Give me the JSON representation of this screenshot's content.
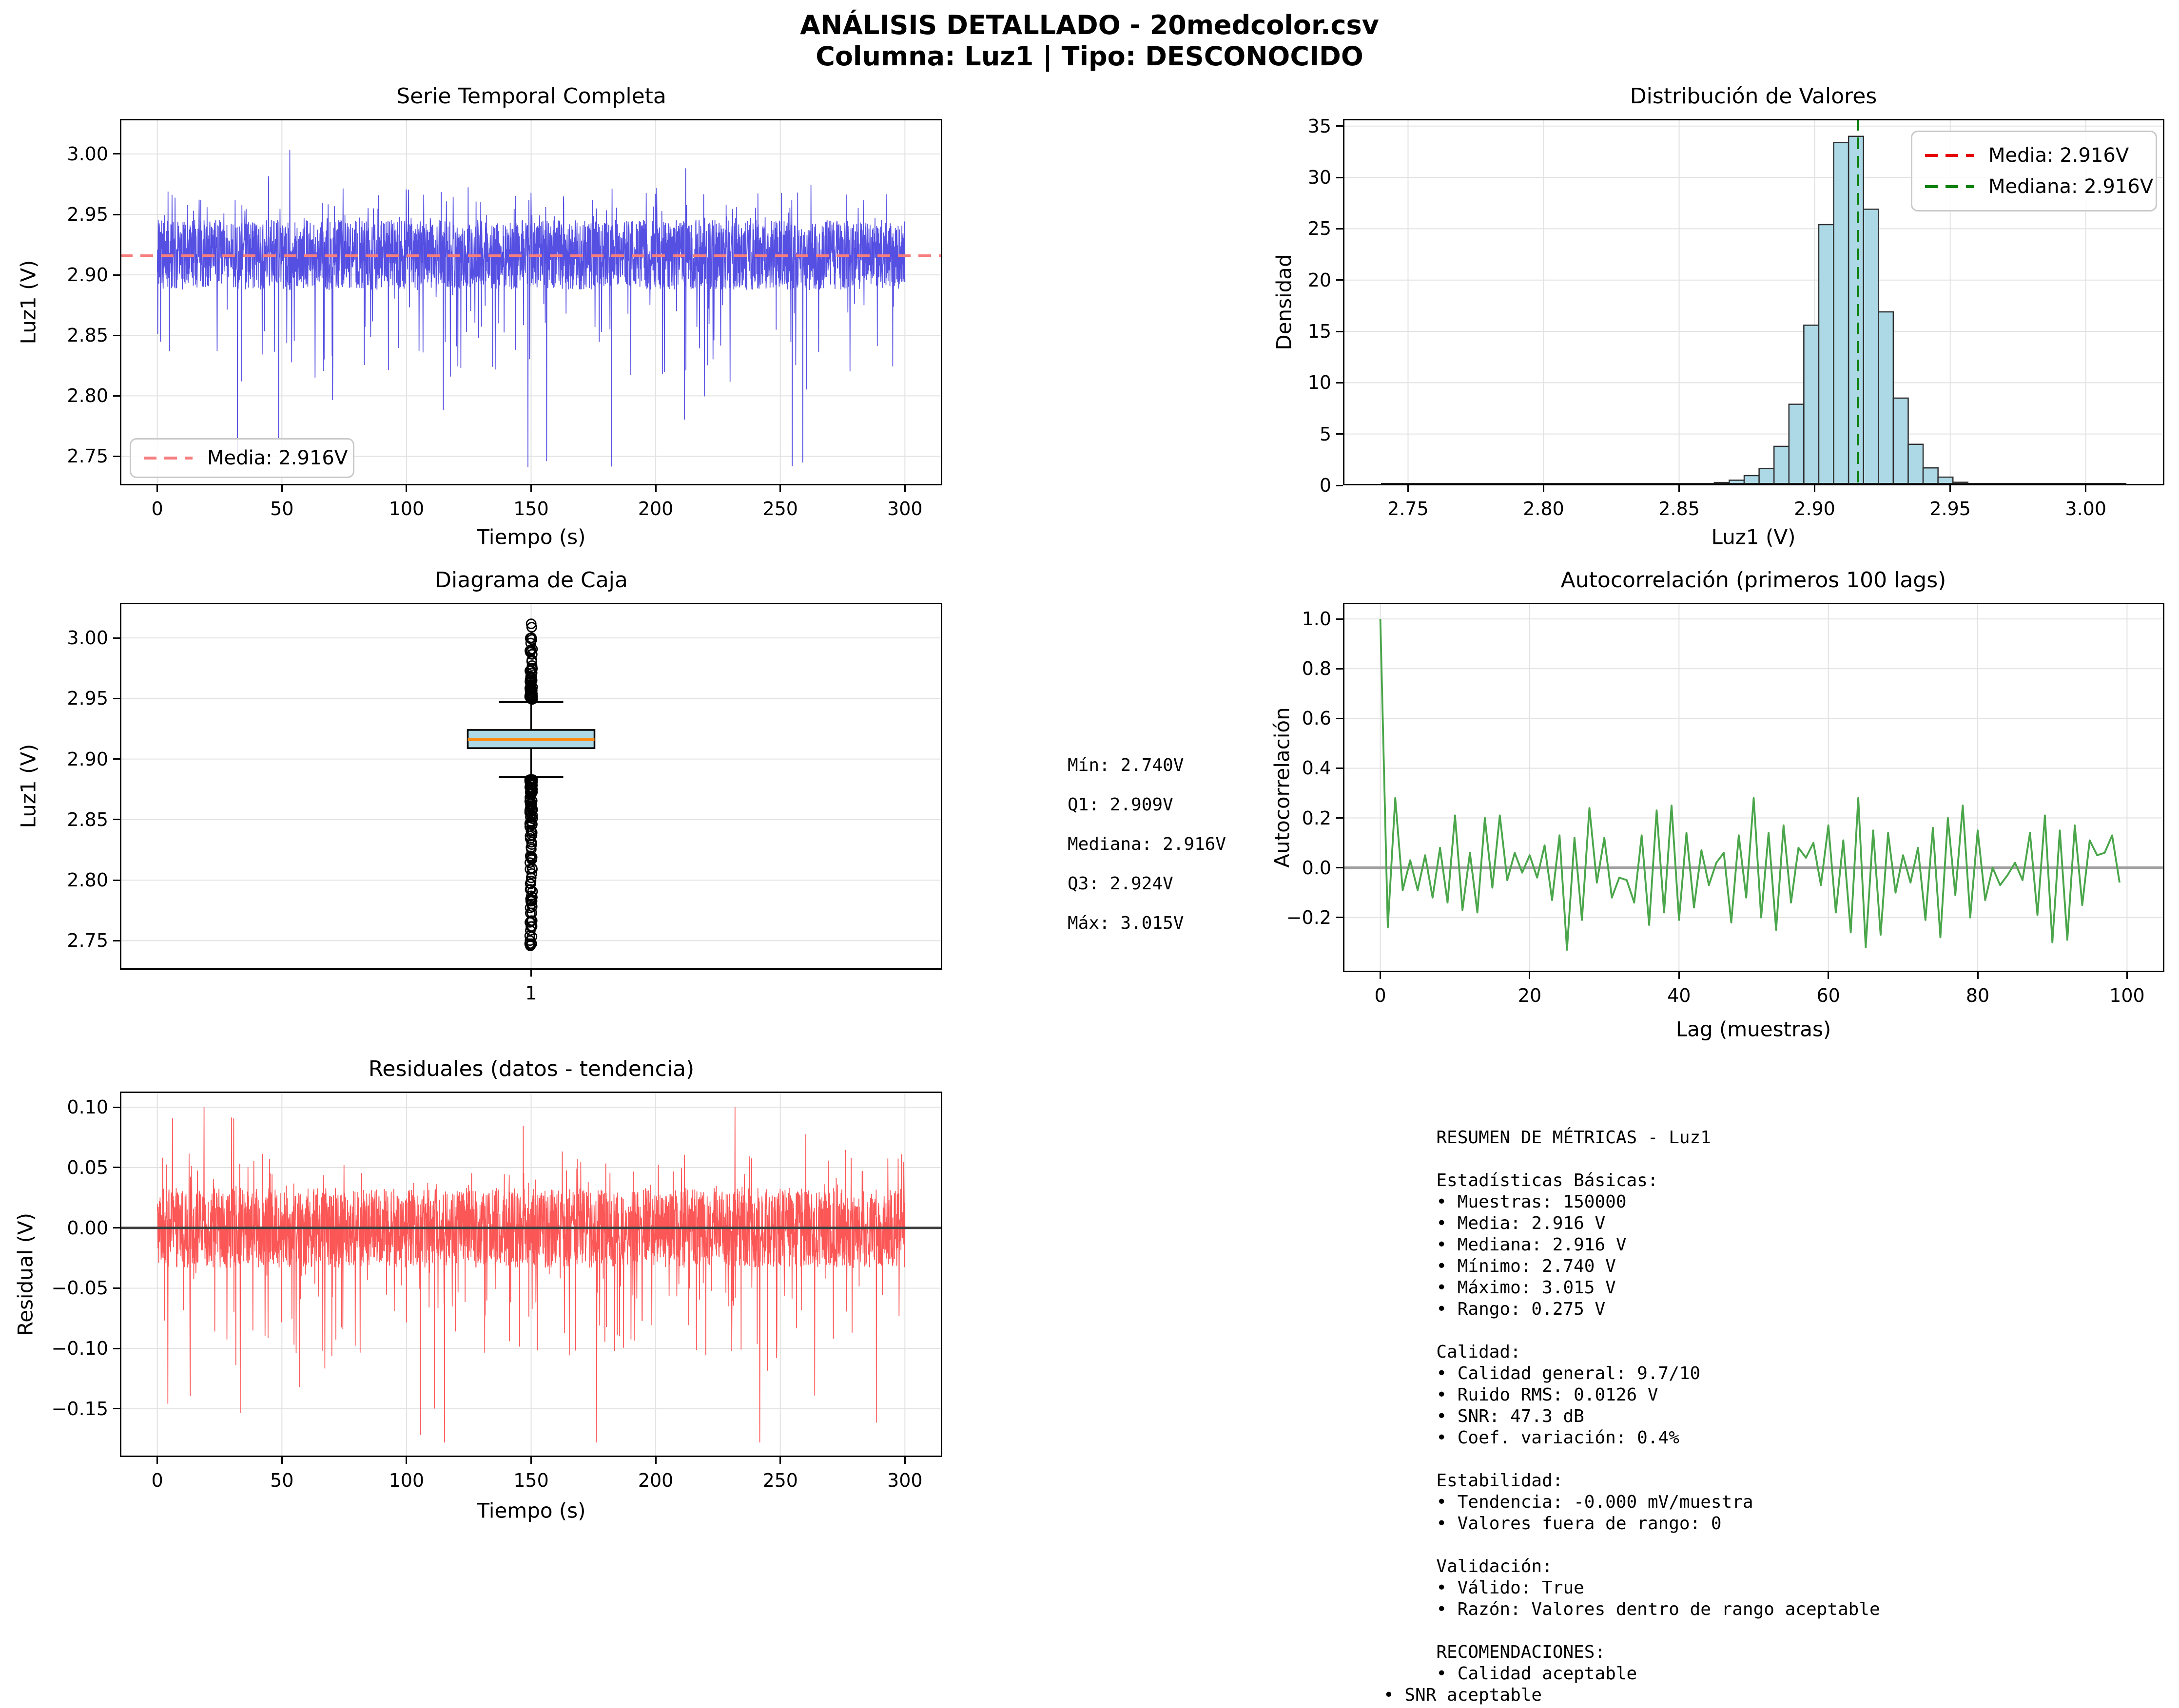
{
  "header": {
    "line1": "ANÁLISIS DETALLADO - 20medcolor.csv",
    "line2": "Columna: Luz1 | Tipo: DESCONOCIDO"
  },
  "colors": {
    "series_blue": "#4640e0",
    "mean_salmon": "#f77e7e",
    "media_red": "#e60000",
    "mediana_green": "#0b800b",
    "hist_fill": "#add8e6",
    "hist_edge": "#2f2f2f",
    "box_fill": "#add8e6",
    "box_median_orange": "#ff8b12",
    "autocorr_green": "#4ba64b",
    "residual_red": "#fc4a4a",
    "grid": "#e2e2e2",
    "zero_gray": "#a0a0a0",
    "zero_dark": "#3f3f3f"
  },
  "stats_annotation": {
    "lines": [
      "Mín: 2.740V",
      "Q1: 2.909V",
      "Mediana: 2.916V",
      "Q3: 2.924V",
      "Máx: 3.015V"
    ]
  },
  "metrics": {
    "lines": [
      "     RESUMEN DE MÉTRICAS - Luz1",
      "",
      "     Estadísticas Básicas:",
      "     • Muestras: 150000",
      "     • Media: 2.916 V",
      "     • Mediana: 2.916 V",
      "     • Mínimo: 2.740 V",
      "     • Máximo: 3.015 V",
      "     • Rango: 0.275 V",
      "",
      "     Calidad:",
      "     • Calidad general: 9.7/10",
      "     • Ruido RMS: 0.0126 V",
      "     • SNR: 47.3 dB",
      "     • Coef. variación: 0.4%",
      "",
      "     Estabilidad:",
      "     • Tendencia: -0.000 mV/muestra",
      "     • Valores fuera de rango: 0",
      "",
      "     Validación:",
      "     • Válido: True",
      "     • Razón: Valores dentro de rango aceptable",
      "",
      "     RECOMENDACIONES:",
      "     • Calidad aceptable",
      "• SNR aceptable"
    ]
  },
  "chart_data": [
    {
      "id": "timeseries",
      "type": "line",
      "title": "Serie Temporal Completa",
      "xlabel": "Tiempo (s)",
      "ylabel": "Luz1 (V)",
      "xlim": [
        -15,
        315
      ],
      "ylim": [
        2.726,
        3.029
      ],
      "xticks": {
        "values": [
          0,
          50,
          100,
          150,
          200,
          250,
          300
        ],
        "labels": [
          "0",
          "50",
          "100",
          "150",
          "200",
          "250",
          "300"
        ]
      },
      "yticks": {
        "values": [
          2.75,
          2.8,
          2.85,
          2.9,
          2.95,
          3.0
        ],
        "labels": [
          "2.75",
          "2.80",
          "2.85",
          "2.90",
          "2.95",
          "3.00"
        ]
      },
      "legend": [
        {
          "label": "Media: 2.916V",
          "color": "#f77e7e",
          "dashed": true
        }
      ],
      "mean_line": {
        "value": 2.916,
        "color": "#f77e7e"
      },
      "series": {
        "color": "#4640e0",
        "n": 3200,
        "t_range": [
          0,
          300
        ],
        "mean": 2.9165,
        "band": 0.029,
        "min": 2.74,
        "max": 3.015,
        "seed": 42
      }
    },
    {
      "id": "histogram",
      "type": "bar",
      "title": "Distribución de Valores",
      "xlabel": "Luz1 (V)",
      "ylabel": "Densidad",
      "xlim": [
        2.726,
        3.029
      ],
      "ylim": [
        0,
        35.7
      ],
      "xticks": {
        "values": [
          2.75,
          2.8,
          2.85,
          2.9,
          2.95,
          3.0
        ],
        "labels": [
          "2.75",
          "2.80",
          "2.85",
          "2.90",
          "2.95",
          "3.00"
        ]
      },
      "yticks": {
        "values": [
          0,
          5,
          10,
          15,
          20,
          25,
          30,
          35
        ],
        "labels": [
          "0",
          "5",
          "10",
          "15",
          "20",
          "25",
          "30",
          "35"
        ]
      },
      "bin_width": 0.0055,
      "bars": [
        [
          2.852,
          0.1
        ],
        [
          2.8575,
          0.18
        ],
        [
          2.863,
          0.28
        ],
        [
          2.8685,
          0.5
        ],
        [
          2.874,
          0.95
        ],
        [
          2.8795,
          1.65
        ],
        [
          2.885,
          3.8
        ],
        [
          2.8905,
          7.9
        ],
        [
          2.896,
          15.6
        ],
        [
          2.9015,
          25.4
        ],
        [
          2.907,
          33.4
        ],
        [
          2.9125,
          34.0
        ],
        [
          2.918,
          26.9
        ],
        [
          2.9235,
          16.9
        ],
        [
          2.929,
          8.5
        ],
        [
          2.9345,
          4.0
        ],
        [
          2.94,
          1.7
        ],
        [
          2.9455,
          0.8
        ],
        [
          2.951,
          0.3
        ],
        [
          2.9565,
          0.15
        ],
        [
          2.962,
          0.08
        ]
      ],
      "baseline_extent": [
        2.74,
        3.015
      ],
      "bar_color": "#add8e6",
      "edge_color": "#2f2f2f",
      "media_line": {
        "value": 2.916,
        "color": "#e60000"
      },
      "mediana_line": {
        "value": 2.916,
        "color": "#0b800b"
      },
      "legend": [
        {
          "label": "Media: 2.916V",
          "color": "#e60000",
          "dashed": true
        },
        {
          "label": "Mediana: 2.916V",
          "color": "#0b800b",
          "dashed": true
        }
      ]
    },
    {
      "id": "boxplot",
      "type": "box",
      "title": "Diagrama de Caja",
      "xlabel": "",
      "ylabel": "Luz1 (V)",
      "xlim": [
        0.5,
        1.5
      ],
      "ylim": [
        2.726,
        3.029
      ],
      "xticks": {
        "values": [
          1
        ],
        "labels": [
          "1"
        ]
      },
      "yticks": {
        "values": [
          2.75,
          2.8,
          2.85,
          2.9,
          2.95,
          3.0
        ],
        "labels": [
          "2.75",
          "2.80",
          "2.85",
          "2.90",
          "2.95",
          "3.00"
        ]
      },
      "stats": {
        "min": 2.74,
        "q1": 2.909,
        "median": 2.916,
        "q3": 2.924,
        "max": 3.015,
        "whisker_low": 2.885,
        "whisker_high": 2.947
      },
      "outliers": {
        "above_range": [
          2.949,
          3.015
        ],
        "below_range": [
          2.74,
          2.883
        ],
        "n_above": 58,
        "n_below": 125,
        "seed": 7
      },
      "box_fill": "#add8e6",
      "median_color": "#ff8b12"
    },
    {
      "id": "autocorr",
      "type": "line",
      "title": "Autocorrelación (primeros 100 lags)",
      "xlabel": "Lag (muestras)",
      "ylabel": "Autocorrelación",
      "xlim": [
        -5,
        105
      ],
      "ylim": [
        -0.42,
        1.065
      ],
      "xticks": {
        "values": [
          0,
          20,
          40,
          60,
          80,
          100
        ],
        "labels": [
          "0",
          "20",
          "40",
          "60",
          "80",
          "100"
        ]
      },
      "yticks": {
        "values": [
          -0.2,
          0.0,
          0.2,
          0.4,
          0.6,
          0.8,
          1.0
        ],
        "labels": [
          "−0.2",
          "0.0",
          "0.2",
          "0.4",
          "0.6",
          "0.8",
          "1.0"
        ]
      },
      "color": "#4ba64b",
      "values": [
        1.0,
        -0.24,
        0.28,
        -0.09,
        0.03,
        -0.09,
        0.05,
        -0.12,
        0.08,
        -0.14,
        0.21,
        -0.17,
        0.06,
        -0.18,
        0.2,
        -0.08,
        0.21,
        -0.05,
        0.06,
        -0.02,
        0.05,
        -0.04,
        0.09,
        -0.13,
        0.13,
        -0.33,
        0.12,
        -0.21,
        0.24,
        -0.06,
        0.12,
        -0.12,
        -0.04,
        -0.05,
        -0.14,
        0.13,
        -0.23,
        0.23,
        -0.18,
        0.25,
        -0.21,
        0.14,
        -0.16,
        0.07,
        -0.07,
        0.02,
        0.06,
        -0.22,
        0.13,
        -0.12,
        0.28,
        -0.2,
        0.14,
        -0.25,
        0.17,
        -0.14,
        0.08,
        0.04,
        0.1,
        -0.07,
        0.17,
        -0.18,
        0.11,
        -0.26,
        0.28,
        -0.32,
        0.15,
        -0.27,
        0.14,
        -0.1,
        0.05,
        -0.06,
        0.08,
        -0.21,
        0.16,
        -0.28,
        0.2,
        -0.11,
        0.25,
        -0.2,
        0.15,
        -0.13,
        0.0,
        -0.07,
        -0.03,
        0.02,
        -0.05,
        0.14,
        -0.19,
        0.21,
        -0.3,
        0.15,
        -0.29,
        0.17,
        -0.15,
        0.11,
        0.05,
        0.06,
        0.13,
        -0.06
      ]
    },
    {
      "id": "residuals",
      "type": "line",
      "title": "Residuales (datos - tendencia)",
      "xlabel": "Tiempo (s)",
      "ylabel": "Residual (V)",
      "xlim": [
        -15,
        315
      ],
      "ylim": [
        -0.19,
        0.113
      ],
      "xticks": {
        "values": [
          0,
          50,
          100,
          150,
          200,
          250,
          300
        ],
        "labels": [
          "0",
          "50",
          "100",
          "150",
          "200",
          "250",
          "300"
        ]
      },
      "yticks": {
        "values": [
          0.1,
          0.05,
          0.0,
          -0.05,
          -0.1,
          -0.15
        ],
        "labels": [
          "0.10",
          "0.05",
          "0.00",
          "−0.05",
          "−0.10",
          "−0.15"
        ]
      },
      "series": {
        "color": "#fc4a4a",
        "n": 3200,
        "t_range": [
          0,
          300
        ],
        "mean": 0,
        "band": 0.033,
        "min": -0.178,
        "max": 0.1,
        "seed": 1234
      }
    }
  ]
}
